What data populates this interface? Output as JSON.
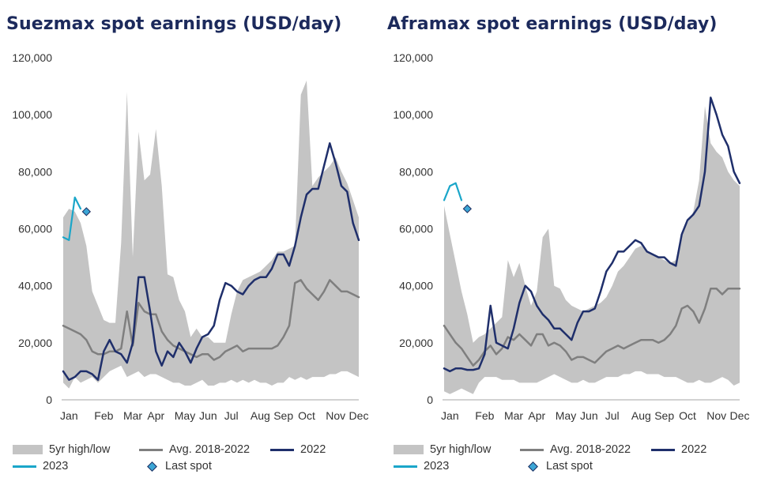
{
  "colors": {
    "band": "#c4c4c4",
    "avg": "#7f7f7f",
    "y2022": "#1f2f6b",
    "y2023": "#1aa6c9",
    "spot": "#3ba6d6",
    "spot_edge": "#1c2a5c",
    "title": "#1c2a5c"
  },
  "legend": {
    "band": "5yr high/low",
    "avg": "Avg. 2018-2022",
    "y2022": "2022",
    "y2023": "2023",
    "spot": "Last spot"
  },
  "chart_data": [
    {
      "type": "area",
      "title": "Suezmax spot earnings (USD/day)",
      "xlabel": "",
      "ylabel": "",
      "ylim": [
        0,
        120000
      ],
      "y_ticks": [
        "0",
        "20,000",
        "40,000",
        "60,000",
        "80,000",
        "100,000",
        "120,000"
      ],
      "x_tick_labels": [
        "Jan",
        "Feb",
        "Mar",
        "Apr",
        "May",
        "Jun",
        "Jul",
        "Aug",
        "Sep",
        "Oct",
        "Nov",
        "Dec"
      ],
      "x_tick_weeks": [
        2,
        8,
        13,
        17,
        22,
        26,
        30,
        35,
        39,
        43,
        48,
        52
      ],
      "grid": false,
      "legend_position": "bottom",
      "series": [
        {
          "name": "5yr high/low",
          "kind": "band",
          "high": [
            64000,
            67000,
            66000,
            62000,
            54000,
            38000,
            33000,
            28000,
            27000,
            27000,
            55000,
            108000,
            50000,
            94000,
            77000,
            79000,
            95000,
            75000,
            44000,
            43000,
            35000,
            31000,
            22000,
            25000,
            22000,
            22000,
            20000,
            20000,
            20000,
            30000,
            38000,
            42000,
            43000,
            44000,
            45000,
            47000,
            49000,
            52000,
            52000,
            53000,
            54000,
            107000,
            112000,
            75000,
            78000,
            80000,
            82000,
            85000,
            80000,
            76000,
            70000,
            64000
          ],
          "low": [
            6000,
            4000,
            8000,
            6000,
            7000,
            8000,
            6000,
            8000,
            10000,
            11000,
            12000,
            8000,
            9000,
            10000,
            8000,
            9000,
            9000,
            8000,
            7000,
            6000,
            6000,
            5000,
            5000,
            6000,
            7000,
            5000,
            5000,
            6000,
            6000,
            7000,
            6000,
            7000,
            6000,
            7000,
            6000,
            6000,
            5000,
            6000,
            6000,
            8000,
            7000,
            8000,
            7000,
            8000,
            8000,
            8000,
            9000,
            9000,
            10000,
            10000,
            9000,
            8000
          ]
        },
        {
          "name": "Avg. 2018-2022",
          "kind": "line",
          "values": [
            26000,
            25000,
            24000,
            23000,
            21000,
            17000,
            16000,
            16000,
            17000,
            17000,
            18000,
            31000,
            19000,
            34000,
            31000,
            30000,
            30000,
            24000,
            21000,
            19000,
            18000,
            17000,
            16000,
            15000,
            16000,
            16000,
            14000,
            15000,
            17000,
            18000,
            19000,
            17000,
            18000,
            18000,
            18000,
            18000,
            18000,
            19000,
            22000,
            26000,
            41000,
            42000,
            39000,
            37000,
            35000,
            38000,
            42000,
            40000,
            38000,
            38000,
            37000,
            36000
          ]
        },
        {
          "name": "2022",
          "kind": "line",
          "values": [
            10000,
            7000,
            8000,
            10000,
            10000,
            9000,
            7000,
            17000,
            21000,
            17000,
            16000,
            13000,
            20000,
            43000,
            43000,
            31000,
            17000,
            12000,
            17000,
            15000,
            20000,
            17000,
            13000,
            18000,
            22000,
            23000,
            26000,
            35000,
            41000,
            40000,
            38000,
            37000,
            40000,
            42000,
            43000,
            43000,
            46000,
            51000,
            51000,
            47000,
            54000,
            64000,
            72000,
            74000,
            74000,
            82000,
            90000,
            83000,
            75000,
            73000,
            62000,
            56000
          ]
        },
        {
          "name": "2023",
          "kind": "line",
          "values": [
            57000,
            56000,
            71000,
            67000
          ]
        },
        {
          "name": "Last spot",
          "kind": "marker",
          "x_week": 5,
          "value": 66000
        }
      ]
    },
    {
      "type": "area",
      "title": "Aframax spot earnings (USD/day)",
      "xlabel": "",
      "ylabel": "",
      "ylim": [
        0,
        120000
      ],
      "y_ticks": [
        "0",
        "20,000",
        "40,000",
        "60,000",
        "80,000",
        "100,000",
        "120,000"
      ],
      "x_tick_labels": [
        "Jan",
        "Feb",
        "Mar",
        "Apr",
        "May",
        "Jun",
        "Jul",
        "Aug",
        "Sep",
        "Oct",
        "Nov",
        "Dec"
      ],
      "x_tick_weeks": [
        2,
        8,
        13,
        17,
        22,
        26,
        30,
        35,
        39,
        43,
        48,
        52
      ],
      "grid": false,
      "legend_position": "bottom",
      "series": [
        {
          "name": "5yr high/low",
          "kind": "band",
          "high": [
            68000,
            58000,
            48000,
            38000,
            30000,
            20000,
            22000,
            23000,
            25000,
            27000,
            29000,
            49000,
            43000,
            48000,
            40000,
            33000,
            38000,
            57000,
            60000,
            40000,
            39000,
            35000,
            33000,
            32000,
            31000,
            32000,
            33000,
            34000,
            36000,
            40000,
            45000,
            47000,
            50000,
            53000,
            54000,
            52000,
            51000,
            50000,
            49000,
            48000,
            49000,
            59000,
            62000,
            66000,
            77000,
            103000,
            90000,
            87000,
            85000,
            80000,
            77000,
            75000
          ],
          "low": [
            3000,
            2000,
            3000,
            4000,
            3000,
            2000,
            6000,
            8000,
            8000,
            8000,
            7000,
            7000,
            7000,
            6000,
            6000,
            6000,
            6000,
            7000,
            8000,
            9000,
            8000,
            7000,
            6000,
            6000,
            7000,
            6000,
            6000,
            7000,
            8000,
            8000,
            8000,
            9000,
            9000,
            10000,
            10000,
            9000,
            9000,
            9000,
            8000,
            8000,
            8000,
            7000,
            6000,
            6000,
            7000,
            6000,
            6000,
            7000,
            8000,
            7000,
            5000,
            6000
          ]
        },
        {
          "name": "Avg. 2018-2022",
          "kind": "line",
          "values": [
            26000,
            23000,
            20000,
            18000,
            15000,
            12000,
            14000,
            17000,
            19000,
            16000,
            18000,
            22000,
            21000,
            23000,
            21000,
            19000,
            23000,
            23000,
            19000,
            20000,
            19000,
            17000,
            14000,
            15000,
            15000,
            14000,
            13000,
            15000,
            17000,
            18000,
            19000,
            18000,
            19000,
            20000,
            21000,
            21000,
            21000,
            20000,
            21000,
            23000,
            26000,
            32000,
            33000,
            31000,
            27000,
            32000,
            39000,
            39000,
            37000,
            39000,
            39000,
            39000
          ]
        },
        {
          "name": "2022",
          "kind": "line",
          "values": [
            11000,
            10000,
            11000,
            11000,
            10500,
            10500,
            11000,
            16000,
            33000,
            20000,
            19000,
            18000,
            25000,
            34000,
            40000,
            38000,
            33000,
            30000,
            28000,
            25000,
            25000,
            23000,
            21000,
            27000,
            31000,
            31000,
            32000,
            38000,
            45000,
            48000,
            52000,
            52000,
            54000,
            56000,
            55000,
            52000,
            51000,
            50000,
            50000,
            48000,
            47000,
            58000,
            63000,
            65000,
            68000,
            80000,
            106000,
            100000,
            93000,
            89000,
            80000,
            76000
          ]
        },
        {
          "name": "2023",
          "kind": "line",
          "values": [
            70000,
            75000,
            76000,
            70000
          ]
        },
        {
          "name": "Last spot",
          "kind": "marker",
          "x_week": 5,
          "value": 67000
        }
      ]
    }
  ]
}
